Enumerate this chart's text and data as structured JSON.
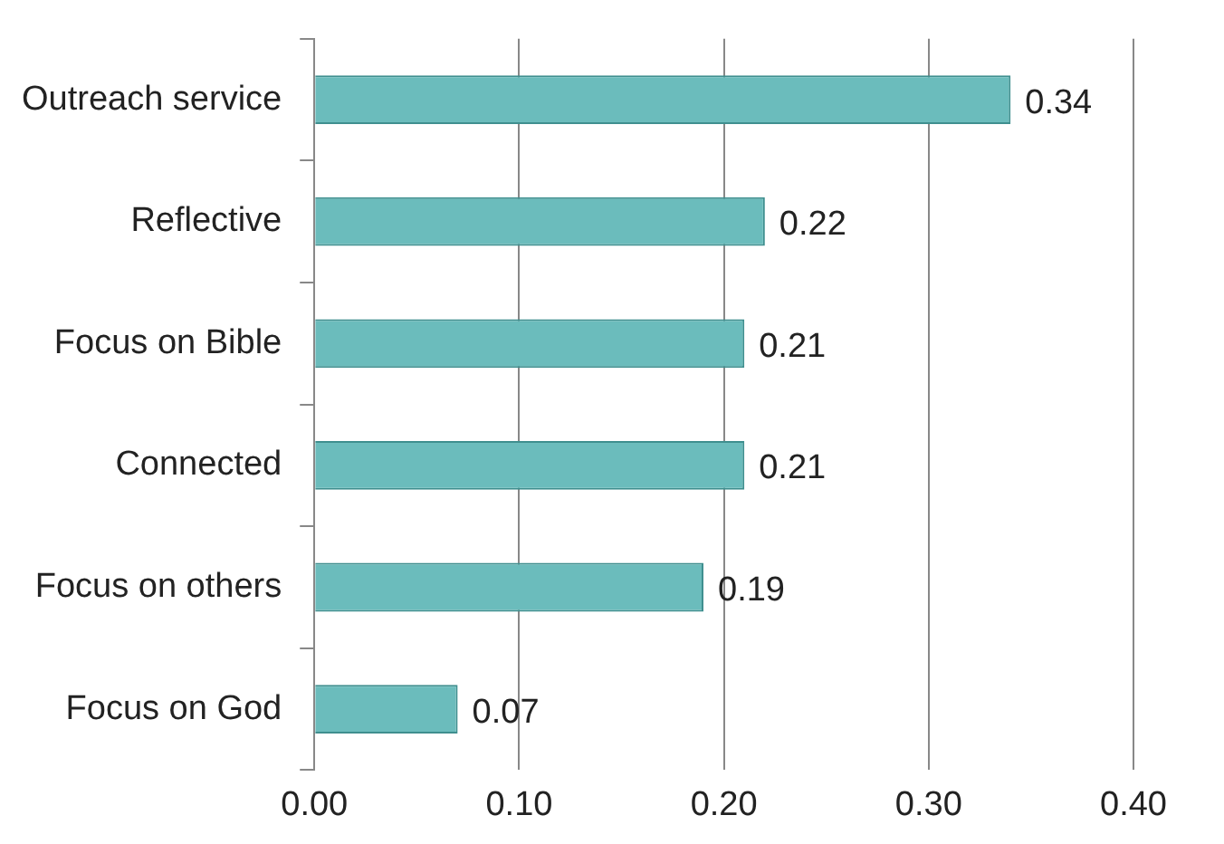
{
  "chart_data": {
    "type": "bar",
    "orientation": "horizontal",
    "categories": [
      "Outreach service",
      "Reflective",
      "Focus on Bible",
      "Connected",
      "Focus on others",
      "Focus on God"
    ],
    "values": [
      0.34,
      0.22,
      0.21,
      0.21,
      0.19,
      0.07
    ],
    "color": "#6bbcbc",
    "xlim": [
      0,
      0.4
    ],
    "xticks": [
      {
        "value": 0,
        "label": "0.00"
      },
      {
        "value": 0.1,
        "label": "0.10"
      },
      {
        "value": 0.2,
        "label": "0.20"
      },
      {
        "value": 0.3,
        "label": "0.30"
      },
      {
        "value": 0.4,
        "label": "0.40"
      }
    ],
    "grid": "x",
    "data_labels": true
  }
}
